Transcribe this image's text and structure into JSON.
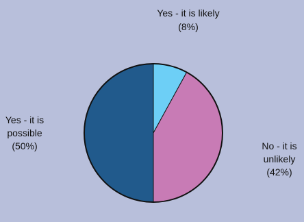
{
  "chart_data": {
    "type": "pie",
    "title": "",
    "start_angle_deg": 0,
    "direction": "clockwise",
    "slices": [
      {
        "label_lines": [
          "Yes - it is likely",
          "(8%)"
        ],
        "label": "Yes - it is likely",
        "value": 8,
        "color": "#6dcff6"
      },
      {
        "label_lines": [
          "No - it is",
          "unlikely",
          "(42%)"
        ],
        "label": "No - it is unlikely",
        "value": 42,
        "color": "#c87bb5"
      },
      {
        "label_lines": [
          "Yes - it is",
          "possible",
          "(50%)"
        ],
        "label": "Yes - it is possible",
        "value": 50,
        "color": "#215a8c"
      }
    ],
    "outline_color": "#111111",
    "background": "#b8bfdb"
  }
}
